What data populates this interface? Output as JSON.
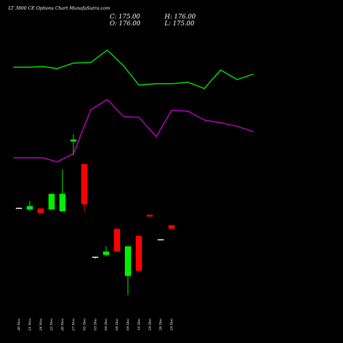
{
  "chart_data": {
    "type": "candlestick",
    "title": "LT 3800 CE Options Chart MunafaSutra.com",
    "ohlc_labels": {
      "close": "C: 175.00",
      "high": "H: 176.00",
      "open": "O: 176.00",
      "low": "L: 175.00"
    },
    "dates": [
      "20 Nov",
      "21 Nov",
      "24 Nov",
      "25 Nov",
      "26 Nov",
      "27 Nov",
      "02 Dec",
      "03 Dec",
      "04 Dec",
      "08 Dec",
      "09 Dec",
      "10 Dec",
      "24 Dec",
      "26 Dec",
      "29 Dec"
    ],
    "candles": [
      {
        "o": 181.0,
        "h": 181.0,
        "l": 181.0,
        "c": 181.0
      },
      {
        "o": 180.5,
        "h": 183.0,
        "l": 180.0,
        "c": 181.5
      },
      {
        "o": 180.8,
        "h": 180.8,
        "l": 179.5,
        "c": 179.5
      },
      {
        "o": 180.5,
        "h": 185.0,
        "l": 180.5,
        "c": 185.0
      },
      {
        "o": 180.0,
        "h": 192.0,
        "l": 180.0,
        "c": 185.0
      },
      {
        "o": 200.0,
        "h": 202.0,
        "l": 196.0,
        "c": 200.5
      },
      {
        "o": 193.5,
        "h": 193.5,
        "l": 180.0,
        "c": 182.0
      },
      {
        "o": 167.0,
        "h": 167.0,
        "l": 166.5,
        "c": 167.0
      },
      {
        "o": 167.5,
        "h": 170.0,
        "l": 167.0,
        "c": 168.5
      },
      {
        "o": 175.0,
        "h": 175.0,
        "l": 168.5,
        "c": 168.5
      },
      {
        "o": 161.5,
        "h": 170.0,
        "l": 156.0,
        "c": 170.0
      },
      {
        "o": 173.0,
        "h": 173.0,
        "l": 163.0,
        "c": 163.0
      },
      {
        "o": 179.0,
        "h": 179.0,
        "l": 178.5,
        "c": 178.5
      },
      {
        "o": 172.0,
        "h": 172.0,
        "l": 172.0,
        "c": 172.0
      },
      {
        "o": 176.0,
        "h": 176.0,
        "l": 175.0,
        "c": 175.0
      }
    ],
    "upper_line": {
      "color": "#00ee00",
      "points": [
        [
          -0.5,
          98
        ],
        [
          0,
          98
        ],
        [
          0.9,
          98
        ],
        [
          2.2,
          97
        ],
        [
          3.5,
          100
        ],
        [
          5.0,
          92
        ],
        [
          6.6,
          91
        ],
        [
          8.1,
          73
        ],
        [
          9.6,
          96
        ],
        [
          11.0,
          124
        ],
        [
          12.6,
          122
        ],
        [
          14.0,
          122
        ],
        [
          15.5,
          120
        ],
        [
          17.0,
          129
        ],
        [
          18.5,
          102
        ],
        [
          20.0,
          116
        ],
        [
          21.5,
          108
        ]
      ]
    },
    "lower_line": {
      "color": "#cc00cc",
      "points": [
        [
          -0.5,
          230
        ],
        [
          0,
          230
        ],
        [
          0.9,
          230
        ],
        [
          2.2,
          230
        ],
        [
          3.5,
          236
        ],
        [
          5.0,
          224
        ],
        [
          6.6,
          160
        ],
        [
          8.1,
          145
        ],
        [
          9.6,
          170
        ],
        [
          11.0,
          171
        ],
        [
          12.6,
          199
        ],
        [
          14.0,
          161
        ],
        [
          15.5,
          162
        ],
        [
          17.0,
          175
        ],
        [
          18.5,
          179
        ],
        [
          20.0,
          184
        ],
        [
          21.5,
          192
        ]
      ]
    },
    "colors": {
      "background": "#000000",
      "up": "#00ee00",
      "down": "#ff0000",
      "doji": "#ffffff",
      "upper_line": "#00ee00",
      "lower_line": "#cc00cc"
    },
    "ylim": [
      150,
      210
    ]
  }
}
